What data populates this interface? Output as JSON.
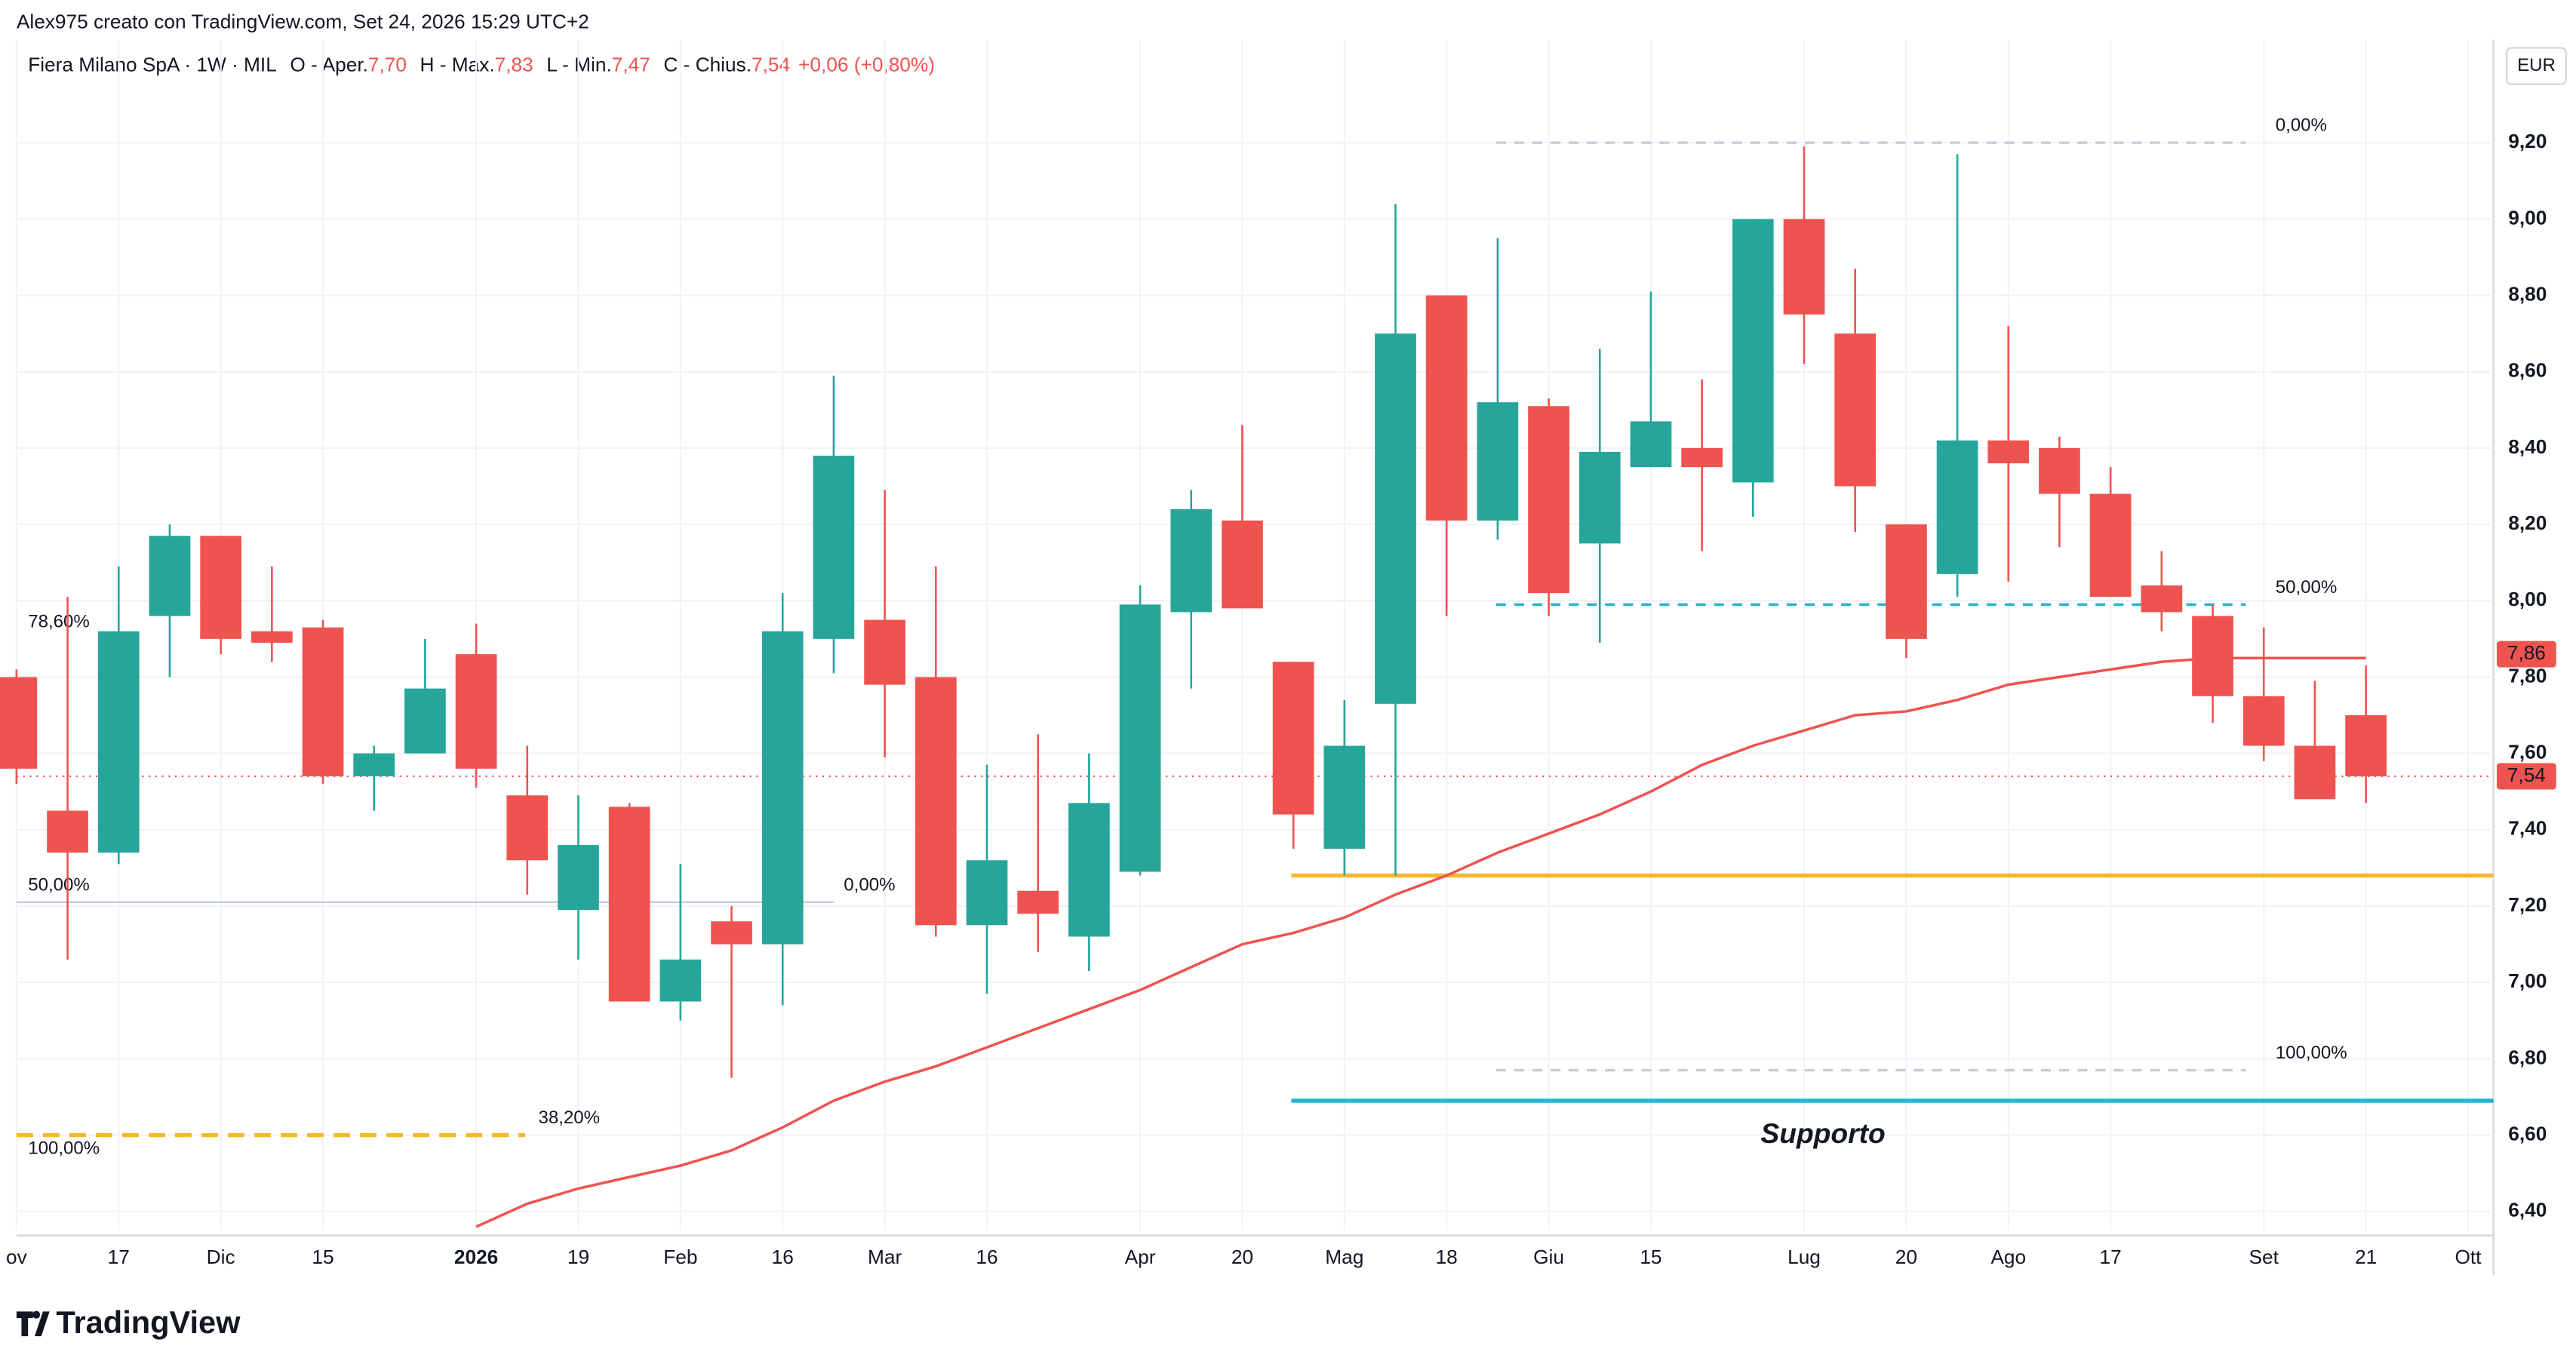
{
  "chart_data": {
    "type": "candlestick",
    "header": "Alex975 creato con TradingView.com, Set 24, 2026 15:29 UTC+2",
    "title": "Fiera Milano SpA · 1W · MIL",
    "legend": [
      {
        "label": "O - Aper.",
        "value": "7,70"
      },
      {
        "label": "H - Max.",
        "value": "7,83"
      },
      {
        "label": "L - Min.",
        "value": "7,47"
      },
      {
        "label": "C - Chius.",
        "value": "7,54"
      }
    ],
    "change": "+0,06 (+0,80%)",
    "currency": "EUR",
    "categories": [
      "ov",
      null,
      "17",
      null,
      "Dic",
      null,
      "15",
      null,
      null,
      "2026",
      null,
      "19",
      null,
      "Feb",
      null,
      "16",
      null,
      "Mar",
      null,
      "16",
      null,
      null,
      "Apr",
      null,
      "20",
      null,
      "Mag",
      null,
      "18",
      null,
      "Giu",
      null,
      "15",
      null,
      null,
      "Lug",
      null,
      "20",
      null,
      "Ago",
      null,
      "17",
      null,
      null,
      "Set",
      null,
      "21",
      null,
      "Ott"
    ],
    "open": [
      7.8,
      7.45,
      7.34,
      7.96,
      8.17,
      7.92,
      7.93,
      7.54,
      7.6,
      7.86,
      7.49,
      7.19,
      7.46,
      6.95,
      7.16,
      7.1,
      7.9,
      7.95,
      7.8,
      7.15,
      7.24,
      7.12,
      7.29,
      7.97,
      8.21,
      7.84,
      7.35,
      7.73,
      8.8,
      8.21,
      8.51,
      8.15,
      8.35,
      8.4,
      8.31,
      9.0,
      8.7,
      8.2,
      8.07,
      8.42,
      8.4,
      8.28,
      8.04,
      7.96,
      7.75,
      7.62,
      7.7,
      null,
      null
    ],
    "high": [
      7.82,
      8.01,
      8.09,
      8.2,
      8.17,
      8.09,
      7.95,
      7.62,
      7.9,
      7.94,
      7.62,
      7.49,
      7.47,
      7.31,
      7.2,
      8.02,
      8.59,
      8.29,
      8.09,
      7.57,
      7.65,
      7.6,
      8.04,
      8.29,
      8.46,
      7.84,
      7.74,
      9.04,
      8.8,
      8.95,
      8.53,
      8.66,
      8.81,
      8.58,
      9.0,
      9.19,
      8.87,
      8.2,
      9.17,
      8.72,
      8.43,
      8.35,
      8.13,
      7.99,
      7.93,
      7.79,
      7.83,
      null,
      null
    ],
    "low": [
      7.52,
      7.06,
      7.31,
      7.8,
      7.86,
      7.84,
      7.52,
      7.45,
      7.6,
      7.51,
      7.23,
      7.06,
      6.95,
      6.9,
      6.75,
      6.94,
      7.81,
      7.59,
      7.12,
      6.97,
      7.08,
      7.03,
      7.28,
      7.77,
      7.98,
      7.35,
      7.28,
      7.28,
      7.96,
      8.16,
      7.96,
      7.89,
      8.35,
      8.13,
      8.22,
      8.62,
      8.18,
      7.85,
      8.01,
      8.05,
      8.14,
      8.01,
      7.92,
      7.68,
      7.58,
      7.48,
      7.47,
      null,
      null
    ],
    "close": [
      7.56,
      7.34,
      7.92,
      8.17,
      7.9,
      7.89,
      7.54,
      7.6,
      7.77,
      7.56,
      7.32,
      7.36,
      6.95,
      7.06,
      7.1,
      7.92,
      8.38,
      7.78,
      7.15,
      7.32,
      7.18,
      7.47,
      7.99,
      8.24,
      7.98,
      7.44,
      7.62,
      8.7,
      8.21,
      8.52,
      8.02,
      8.39,
      8.47,
      8.35,
      9.0,
      8.75,
      8.3,
      7.9,
      8.42,
      8.36,
      8.28,
      8.01,
      7.97,
      7.75,
      7.62,
      7.48,
      7.54,
      null,
      null
    ],
    "up_color": "#26a69a",
    "down_color": "#ef5350",
    "ma": {
      "color": "#ef5350",
      "values": [
        null,
        null,
        null,
        null,
        null,
        null,
        null,
        null,
        null,
        6.36,
        6.42,
        6.46,
        6.49,
        6.52,
        6.56,
        6.62,
        6.69,
        6.74,
        6.78,
        6.83,
        6.88,
        6.93,
        6.98,
        7.04,
        7.1,
        7.13,
        7.17,
        7.23,
        7.28,
        7.34,
        7.39,
        7.44,
        7.5,
        7.57,
        7.62,
        7.66,
        7.7,
        7.71,
        7.74,
        7.78,
        7.8,
        7.82,
        7.84,
        7.85,
        7.85,
        7.85,
        7.85,
        null,
        null
      ]
    },
    "ma_last": {
      "value": 7.86,
      "label": "7,86"
    },
    "last_price": {
      "value": 7.54,
      "label": "7,54"
    },
    "ylim": [
      6.35,
      9.47
    ],
    "yticks": [
      {
        "value": 6.4,
        "label": "6,40"
      },
      {
        "value": 6.6,
        "label": "6,60"
      },
      {
        "value": 6.8,
        "label": "6,80"
      },
      {
        "value": 7.0,
        "label": "7,00"
      },
      {
        "value": 7.2,
        "label": "7,20"
      },
      {
        "value": 7.4,
        "label": "7,40"
      },
      {
        "value": 7.6,
        "label": "7,60"
      },
      {
        "value": 7.8,
        "label": "7,80"
      },
      {
        "value": 8.0,
        "label": "8,00"
      },
      {
        "value": 8.2,
        "label": "8,20"
      },
      {
        "value": 8.4,
        "label": "8,40"
      },
      {
        "value": 8.6,
        "label": "8,60"
      },
      {
        "value": 8.8,
        "label": "8,80"
      },
      {
        "value": 9.0,
        "label": "9,00"
      },
      {
        "value": 9.2,
        "label": "9,20"
      }
    ],
    "grid": true,
    "levels": [
      {
        "value": 7.28,
        "color": "#f5b731"
      },
      {
        "value": 6.69,
        "color": "#22b5d3"
      },
      {
        "value": 9.2,
        "label": "0,00%",
        "color": "#c7cbd6"
      },
      {
        "value": 7.99,
        "label": "50,00%",
        "color": "#22b5d3"
      },
      {
        "value": 6.77,
        "label": "100,00%",
        "color": "#c7cbd6"
      },
      {
        "value": 7.21,
        "label": "50,00%",
        "color": "#22b5d3"
      },
      {
        "value": 7.21,
        "label": "0,00%",
        "color": "#c7cbd6"
      },
      {
        "value": 6.6,
        "label": "38,20%",
        "color": "#f5b731"
      },
      {
        "value": 7.9,
        "label": "78,60%",
        "color": "#22b5d3"
      },
      {
        "value": 6.52,
        "label": "100,00%",
        "color": "#a8e3ef"
      }
    ],
    "annotation": "Supporto",
    "logo": "TradingView"
  }
}
